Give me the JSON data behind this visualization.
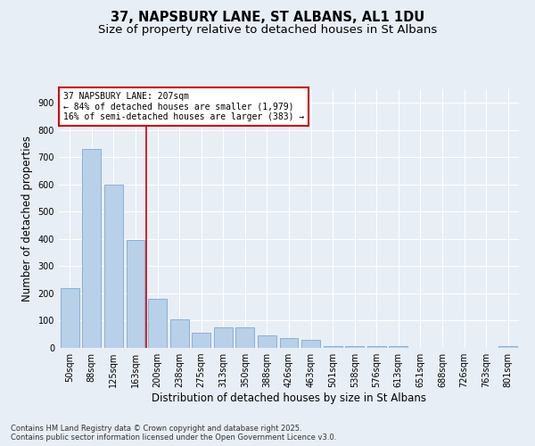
{
  "title": "37, NAPSBURY LANE, ST ALBANS, AL1 1DU",
  "subtitle": "Size of property relative to detached houses in St Albans",
  "xlabel": "Distribution of detached houses by size in St Albans",
  "ylabel": "Number of detached properties",
  "categories": [
    "50sqm",
    "88sqm",
    "125sqm",
    "163sqm",
    "200sqm",
    "238sqm",
    "275sqm",
    "313sqm",
    "350sqm",
    "388sqm",
    "426sqm",
    "463sqm",
    "501sqm",
    "538sqm",
    "576sqm",
    "613sqm",
    "651sqm",
    "688sqm",
    "726sqm",
    "763sqm",
    "801sqm"
  ],
  "values": [
    220,
    730,
    600,
    395,
    180,
    105,
    55,
    75,
    75,
    45,
    35,
    30,
    8,
    8,
    8,
    8,
    0,
    0,
    0,
    0,
    5
  ],
  "bar_color": "#b8d0e8",
  "bar_edge_color": "#6aa0cc",
  "vline_color": "#cc0000",
  "vline_x": 3.5,
  "annotation_text": "37 NAPSBURY LANE: 207sqm\n← 84% of detached houses are smaller (1,979)\n16% of semi-detached houses are larger (383) →",
  "annotation_box_edge_color": "#cc0000",
  "ylim": [
    0,
    950
  ],
  "yticks": [
    0,
    100,
    200,
    300,
    400,
    500,
    600,
    700,
    800,
    900
  ],
  "footer": "Contains HM Land Registry data © Crown copyright and database right 2025.\nContains public sector information licensed under the Open Government Licence v3.0.",
  "bg_color": "#e8eef5",
  "plot_bg_color": "#e8eef5",
  "grid_color": "#ffffff",
  "title_fontsize": 10.5,
  "subtitle_fontsize": 9.5,
  "tick_fontsize": 7,
  "ylabel_fontsize": 8.5,
  "xlabel_fontsize": 8.5,
  "annotation_fontsize": 7,
  "footer_fontsize": 6
}
